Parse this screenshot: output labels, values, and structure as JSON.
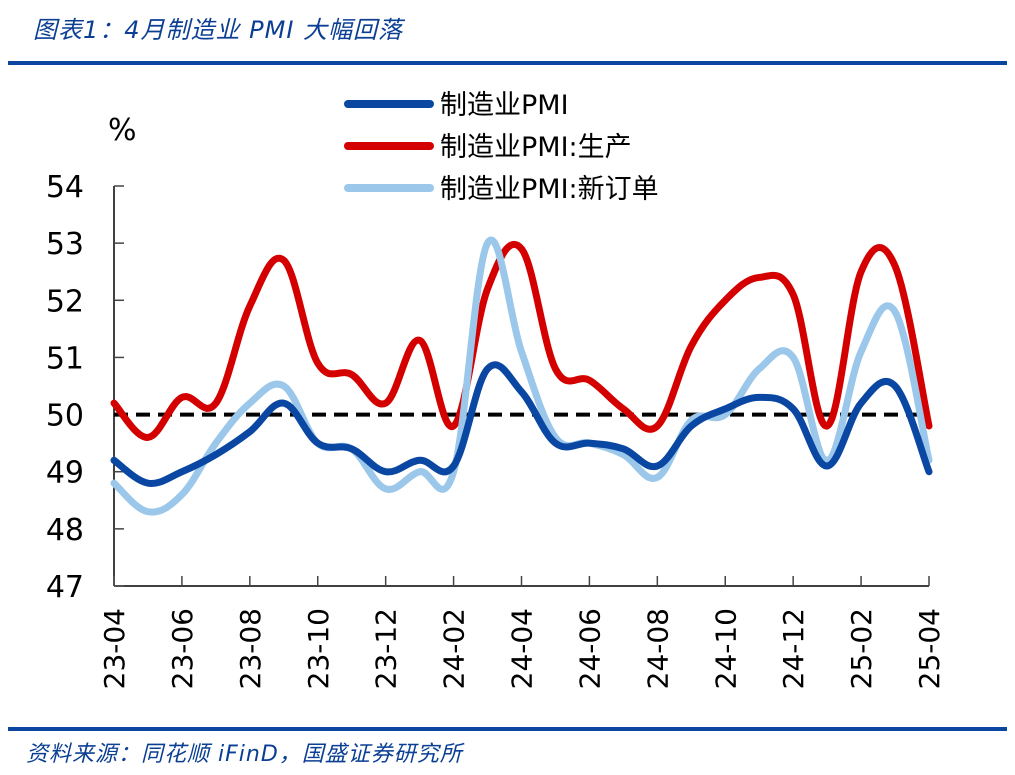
{
  "figure": {
    "title": "图表1：4月制造业 PMI 大幅回落",
    "source": "资料来源：同花顺 iFinD，国盛证券研究所"
  },
  "chart_data": {
    "type": "line",
    "title": "图表1：4月制造业 PMI 大幅回落",
    "ylabel": "%",
    "xlabel": "",
    "ylim": [
      47,
      54
    ],
    "yticks": [
      47,
      48,
      49,
      50,
      51,
      52,
      53,
      54
    ],
    "grid": false,
    "legend_position": "top-center",
    "reference_line": {
      "y": 50,
      "style": "dashed",
      "color": "#000000"
    },
    "x": [
      "23-04",
      "23-05",
      "23-06",
      "23-07",
      "23-08",
      "23-09",
      "23-10",
      "23-11",
      "23-12",
      "24-01",
      "24-02",
      "24-03",
      "24-04",
      "24-05",
      "24-06",
      "24-07",
      "24-08",
      "24-09",
      "24-10",
      "24-11",
      "24-12",
      "25-01",
      "25-02",
      "25-03",
      "25-04"
    ],
    "xtick_labels": [
      "23-04",
      "23-06",
      "23-08",
      "23-10",
      "23-12",
      "24-02",
      "24-04",
      "24-06",
      "24-08",
      "24-10",
      "24-12",
      "25-02",
      "25-04"
    ],
    "series": [
      {
        "name": "制造业PMI",
        "color": "#0a47a3",
        "values": [
          49.2,
          48.8,
          49.0,
          49.3,
          49.7,
          50.2,
          49.5,
          49.4,
          49.0,
          49.2,
          49.1,
          50.8,
          50.4,
          49.5,
          49.5,
          49.4,
          49.1,
          49.8,
          50.1,
          50.3,
          50.1,
          49.1,
          50.2,
          50.5,
          49.0
        ]
      },
      {
        "name": "制造业PMI:生产",
        "color": "#d40000",
        "values": [
          50.2,
          49.6,
          50.3,
          50.2,
          51.9,
          52.7,
          50.9,
          50.7,
          50.2,
          51.3,
          49.8,
          52.2,
          52.9,
          50.8,
          50.6,
          50.1,
          49.8,
          51.2,
          52.0,
          52.4,
          52.1,
          49.8,
          52.5,
          52.6,
          49.8
        ]
      },
      {
        "name": "制造业PMI:新订单",
        "color": "#9ac7ea",
        "values": [
          48.8,
          48.3,
          48.6,
          49.5,
          50.2,
          50.5,
          49.5,
          49.4,
          48.7,
          49.0,
          49.0,
          53.0,
          51.1,
          49.6,
          49.5,
          49.3,
          48.9,
          49.9,
          50.0,
          50.8,
          51.0,
          49.2,
          51.1,
          51.8,
          49.2
        ]
      }
    ]
  }
}
